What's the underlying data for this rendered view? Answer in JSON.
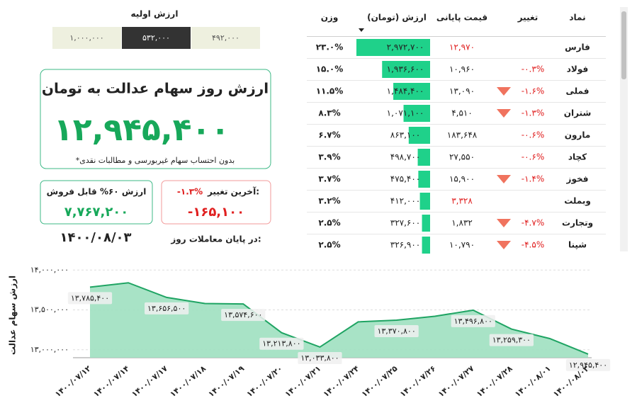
{
  "initial_value": {
    "label": "ارزش اولیه",
    "options": [
      "۴۹۲,۰۰۰",
      "۵۳۲,۰۰۰",
      "۱,۰۰۰,۰۰۰"
    ],
    "selected": 1
  },
  "main_card": {
    "title": "ارزش روز سهام عدالت به تومان",
    "value": "۱۲,۹۴۵,۴۰۰",
    "note": "*بدون احتساب سهام غیربورسی و مطالبات نقدی"
  },
  "change_card": {
    "label": "آخرین تغییر:",
    "percent": "-۱.۳%",
    "amount": "-۱۶۵,۱۰۰"
  },
  "sellable_card": {
    "label": "ارزش ۶۰% قابل فروش",
    "value": "۷,۷۶۷,۲۰۰"
  },
  "date_line": {
    "label": "در پایان معاملات روز:",
    "date": "۱۴۰۰/۰۸/۰۳"
  },
  "table": {
    "headers": [
      "نماد",
      "تغییر",
      "قیمت پایانی",
      "ارزش (تومان)",
      "وزن"
    ],
    "rows": [
      {
        "symbol": "فارس",
        "price": "۱۲,۹۷۰",
        "price_red": true,
        "value": "۲,۹۷۲,۷۰۰",
        "weight": "۲۳.۰%"
      },
      {
        "symbol": "فولاد",
        "change": "-۰.۳%",
        "price": "۱۰,۹۶۰",
        "value": "۱,۹۳۶,۶۰۰",
        "weight": "۱۵.۰%"
      },
      {
        "symbol": "فملی",
        "change": "-۱.۶%",
        "down_arrow": true,
        "price": "۱۳,۰۹۰",
        "value": "۱,۴۸۴,۴۰۰",
        "weight": "۱۱.۵%"
      },
      {
        "symbol": "شتران",
        "change": "-۱.۳%",
        "down_arrow": true,
        "price": "۴,۵۱۰",
        "value": "۱,۰۷۱,۱۰۰",
        "weight": "۸.۳%"
      },
      {
        "symbol": "مارون",
        "change": "-۰.۶%",
        "price": "۱۸۳,۶۴۸",
        "value": "۸۶۳,۱۰۰",
        "weight": "۶.۷%"
      },
      {
        "symbol": "کچاد",
        "change": "-۰.۶%",
        "price": "۲۷,۵۵۰",
        "value": "۴۹۸,۷۰۰",
        "weight": "۳.۹%"
      },
      {
        "symbol": "فخوز",
        "change": "-۱.۴%",
        "down_arrow": true,
        "price": "۱۵,۹۰۰",
        "value": "۴۷۵,۴۰۰",
        "weight": "۳.۷%"
      },
      {
        "symbol": "وبملت",
        "price": "۳,۳۲۸",
        "price_red": true,
        "value": "۴۱۲,۰۰۰",
        "weight": "۳.۲%"
      },
      {
        "symbol": "وتجارت",
        "change": "-۴.۷%",
        "down_arrow": true,
        "price": "۱,۸۳۲",
        "value": "۳۲۷,۶۰۰",
        "weight": "۲.۵%"
      },
      {
        "symbol": "شپنا",
        "change": "-۴.۵%",
        "down_arrow": true,
        "price": "۱۰,۷۹۰",
        "value": "۳۲۶,۹۰۰",
        "weight": "۲.۵%"
      }
    ]
  },
  "chart_data": {
    "type": "area",
    "ylabel": "ارزش سهام عدالت",
    "color": "#1fa463",
    "grid": true,
    "categories": [
      "۱۴۰۰/۰۷/۱۲",
      "۱۴۰۰/۰۷/۱۴",
      "۱۴۰۰/۰۷/۱۷",
      "۱۴۰۰/۰۷/۱۸",
      "۱۴۰۰/۰۷/۱۹",
      "۱۴۰۰/۰۷/۲۰",
      "۱۴۰۰/۰۷/۲۱",
      "۱۴۰۰/۰۷/۲۴",
      "۱۴۰۰/۰۷/۲۵",
      "۱۴۰۰/۰۷/۲۶",
      "۱۴۰۰/۰۷/۲۷",
      "۱۴۰۰/۰۷/۲۸",
      "۱۴۰۰/۰۸/۰۱",
      "۱۴۰۰/۰۸/۰۳"
    ],
    "values": [
      13785400,
      13840000,
      13656500,
      13580000,
      13574600,
      13213800,
      13033800,
      13350000,
      13370800,
      13420000,
      13496800,
      13259300,
      13140000,
      12945400
    ],
    "value_labels": [
      "۱۳,۷۸۵,۴۰۰",
      null,
      "۱۳,۶۵۶,۵۰۰",
      null,
      "۱۳,۵۷۴,۶۰۰",
      "۱۳,۲۱۳,۸۰۰",
      "۱۳,۰۳۳,۸۰۰",
      null,
      "۱۳,۳۷۰,۸۰۰",
      null,
      "۱۳,۴۹۶,۸۰۰",
      "۱۳,۲۵۹,۳۰۰",
      null,
      "۱۲,۹۴۵,۴۰۰"
    ],
    "ylim": [
      12900000,
      14100000
    ],
    "yticks": [
      {
        "value": 13000000,
        "label": "۱۳,۰۰۰,۰۰۰"
      },
      {
        "value": 13500000,
        "label": "۱۳,۵۰۰,۰۰۰"
      },
      {
        "value": 14000000,
        "label": "۱۴,۰۰۰,۰۰۰"
      }
    ]
  }
}
